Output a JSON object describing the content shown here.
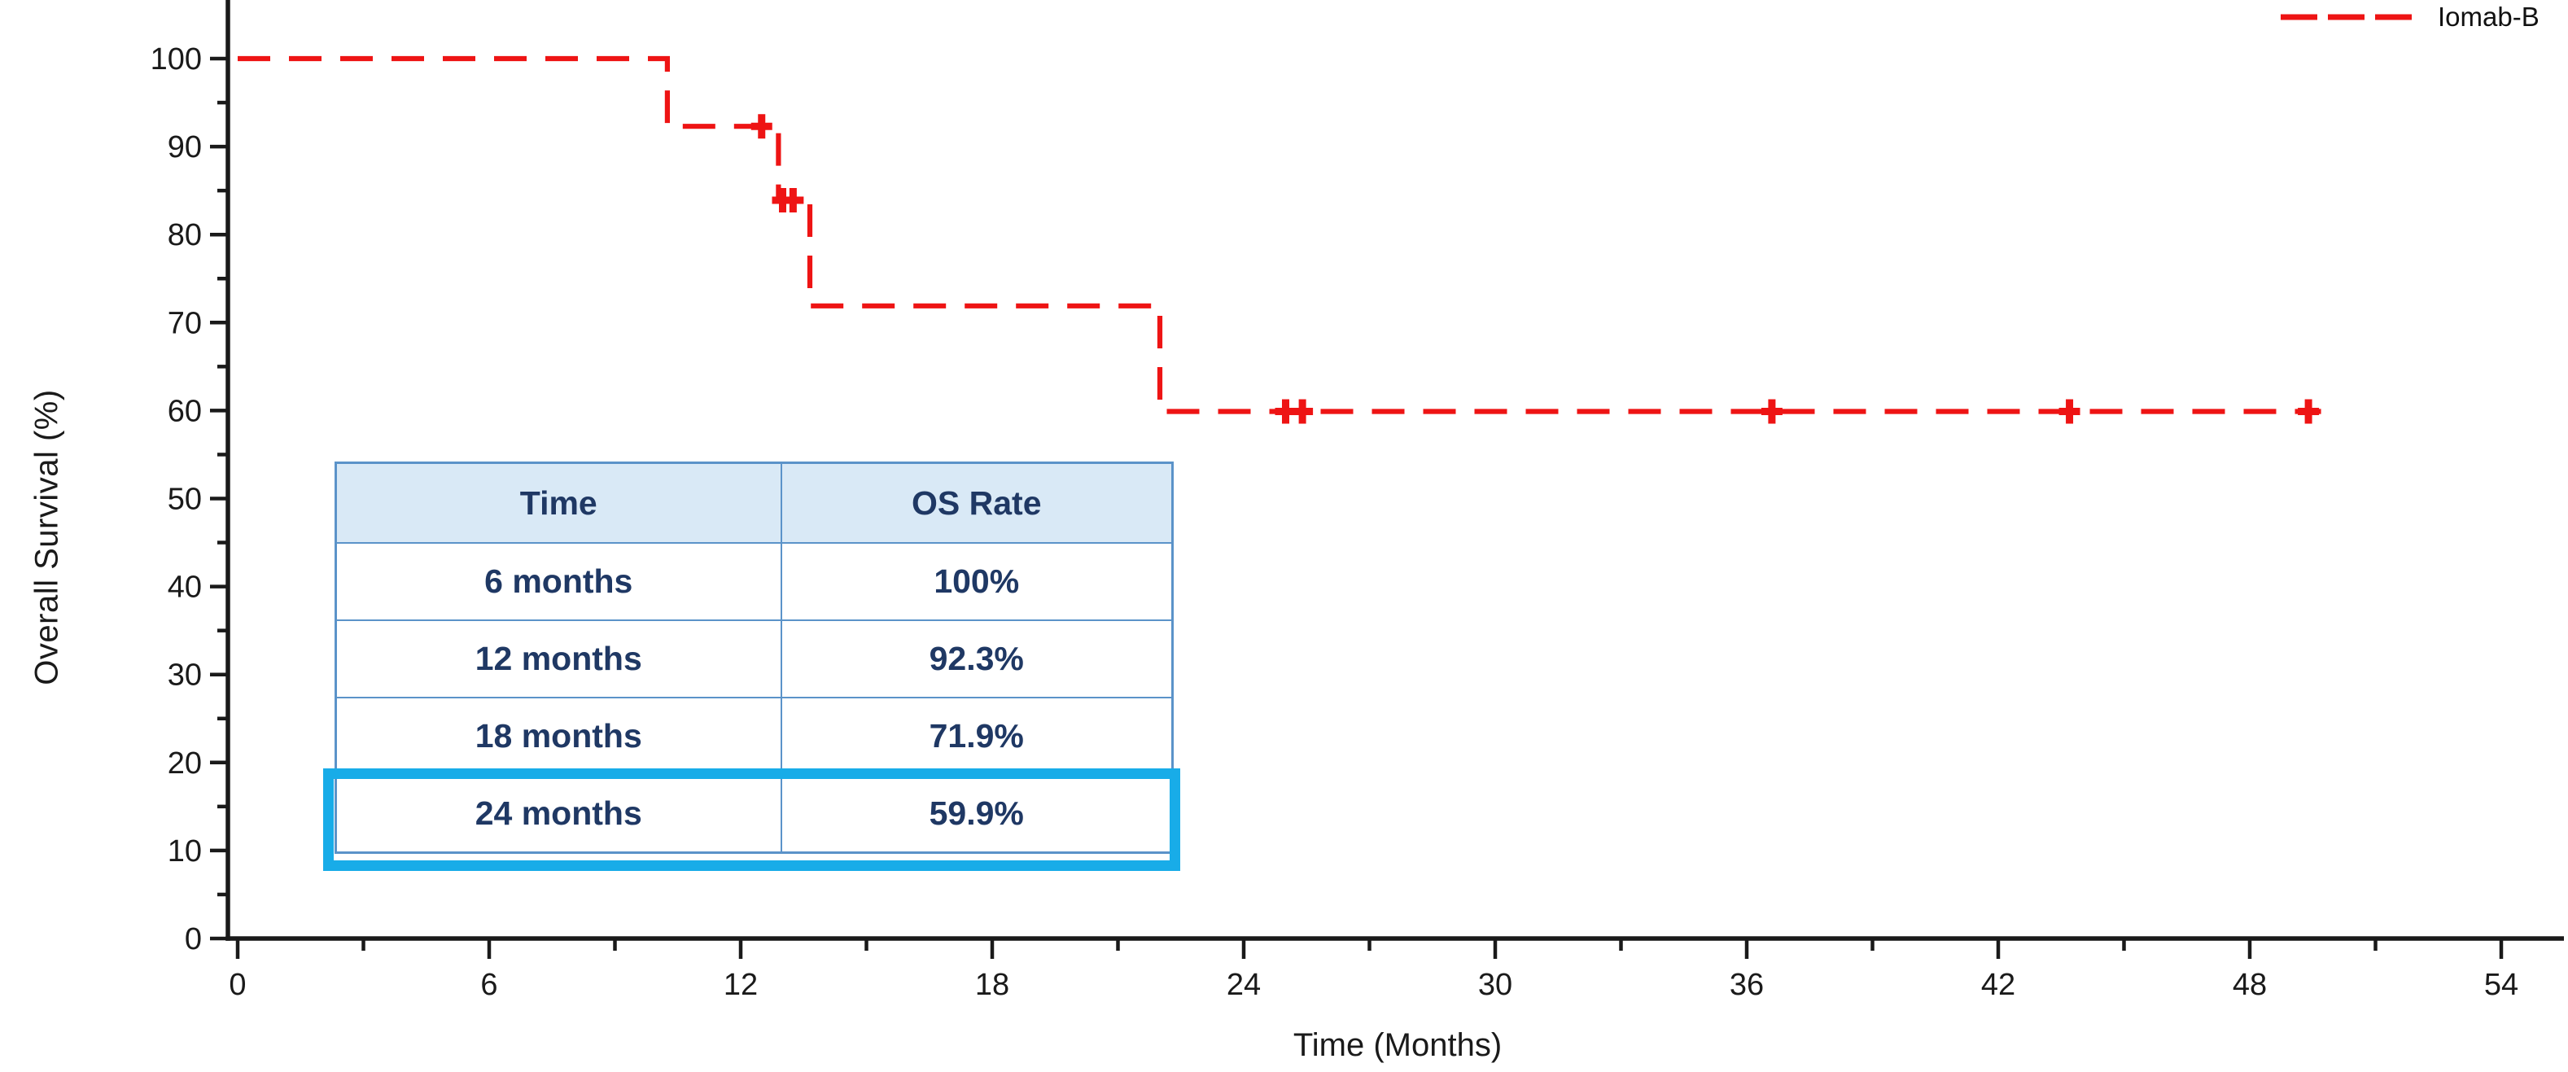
{
  "chart_data": {
    "type": "line",
    "subtype": "kaplan-meier-step",
    "title": "",
    "xlabel": "Time (Months)",
    "ylabel": "Overall Survival (%)",
    "xlim": [
      0,
      56
    ],
    "ylim": [
      0,
      105
    ],
    "grid": false,
    "x_major_ticks": [
      0,
      6,
      12,
      18,
      24,
      30,
      36,
      42,
      48,
      54
    ],
    "x_minor_ticks": [
      3,
      9,
      15,
      21,
      27,
      33,
      39,
      45,
      51
    ],
    "y_major_ticks": [
      0,
      10,
      20,
      30,
      40,
      50,
      60,
      70,
      80,
      90,
      100
    ],
    "y_minor_ticks": [
      5,
      15,
      25,
      35,
      45,
      55,
      65,
      75,
      85,
      95
    ],
    "legend": {
      "position": "top-right",
      "entries": [
        {
          "label": "Iomab-B",
          "color": "#EE1414",
          "style": "dashed"
        }
      ]
    },
    "series": [
      {
        "name": "Iomab-B",
        "color": "#EE1414",
        "line_style": "dashed",
        "step_points": [
          [
            0,
            100
          ],
          [
            10.25,
            100
          ],
          [
            10.25,
            92.3
          ],
          [
            12.9,
            92.3
          ],
          [
            12.9,
            83.9
          ],
          [
            13.65,
            83.9
          ],
          [
            13.65,
            71.9
          ],
          [
            22.0,
            71.9
          ],
          [
            22.0,
            59.9
          ],
          [
            49.7,
            59.9
          ]
        ],
        "censor_marks": [
          [
            12.5,
            92.3
          ],
          [
            13.0,
            83.9
          ],
          [
            13.25,
            83.9
          ],
          [
            25.0,
            59.9
          ],
          [
            25.4,
            59.9
          ],
          [
            36.6,
            59.9
          ],
          [
            43.7,
            59.9
          ],
          [
            49.4,
            59.9
          ]
        ]
      }
    ]
  },
  "table": {
    "headers": [
      "Time",
      "OS Rate"
    ],
    "rows": [
      [
        "6 months",
        "100%"
      ],
      [
        "12 months",
        "92.3%"
      ],
      [
        "18 months",
        "71.9%"
      ],
      [
        "24 months",
        "59.9%"
      ]
    ],
    "highlighted_row_index": 3,
    "colors": {
      "header_bg": "#D9E9F6",
      "border": "#5B93C9",
      "text": "#1F3864",
      "highlight": "#18ACE8",
      "curve_red": "#EE1414",
      "axis_black": "#1a1a1a"
    }
  }
}
